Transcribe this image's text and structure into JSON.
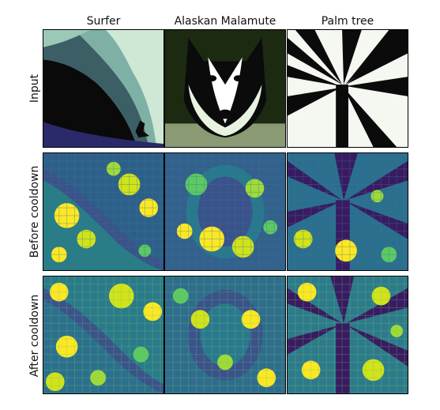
{
  "figure": {
    "columns": [
      {
        "label": "Surfer"
      },
      {
        "label": "Alaskan Malamute"
      },
      {
        "label": "Palm tree"
      }
    ],
    "rows": [
      {
        "label": "Input"
      },
      {
        "label": "Before cooldown"
      },
      {
        "label": "After cooldown"
      }
    ],
    "colormap": {
      "input": [
        "#0b0b0b",
        "#2a3f49",
        "#5f8b8a",
        "#bfe0c6",
        "#ffffff"
      ],
      "heat": [
        "#440154",
        "#3b528b",
        "#21918c",
        "#5ec962",
        "#fde725"
      ]
    }
  }
}
